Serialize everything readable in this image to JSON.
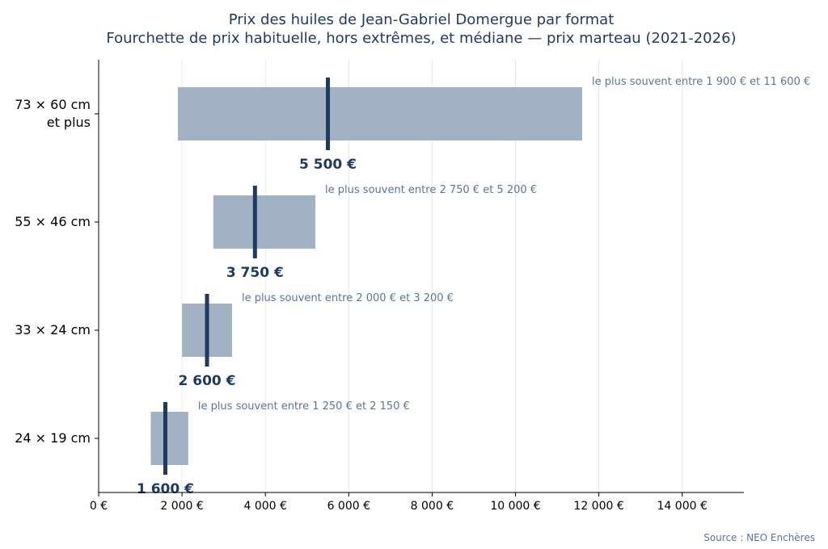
{
  "chart_data": {
    "type": "bar",
    "orientation": "horizontal",
    "title": "Prix des huiles de Jean-Gabriel Domergue par format",
    "subtitle": "Fourchette de prix habituelle, hors extrêmes, et médiane — prix marteau (2021-2026)",
    "categories": [
      [
        "73 × 60 cm",
        "et plus"
      ],
      [
        "55 × 46 cm"
      ],
      [
        "33 × 24 cm"
      ],
      [
        "24 × 19 cm"
      ]
    ],
    "ranges": [
      {
        "low": 1900,
        "high": 11600,
        "median": 5500,
        "median_label": "5 500 €",
        "range_label": "le plus souvent entre 1 900 € et 11 600 €"
      },
      {
        "low": 2750,
        "high": 5200,
        "median": 3750,
        "median_label": "3 750 €",
        "range_label": "le plus souvent entre 2 750 € et 5 200 €"
      },
      {
        "low": 2000,
        "high": 3200,
        "median": 2600,
        "median_label": "2 600 €",
        "range_label": "le plus souvent entre 2 000 € et 3 200 €"
      },
      {
        "low": 1250,
        "high": 2150,
        "median": 1600,
        "median_label": "1 600 €",
        "range_label": "le plus souvent entre 1 250 € et 2 150 €"
      }
    ],
    "xlim": [
      0,
      15500
    ],
    "xticks": [
      0,
      2000,
      4000,
      6000,
      8000,
      10000,
      12000,
      14000
    ],
    "xtick_labels": [
      "0 €",
      "2 000 €",
      "4 000 €",
      "6 000 €",
      "8 000 €",
      "10 000 €",
      "12 000 €",
      "14 000 €"
    ],
    "grid": "vertical",
    "colors": {
      "range_bar": "#a3b1c5",
      "median": "#1f3a5f",
      "label": "#5b7599",
      "title": "#1f3a5f"
    }
  },
  "source": "Source : NEO Enchères"
}
